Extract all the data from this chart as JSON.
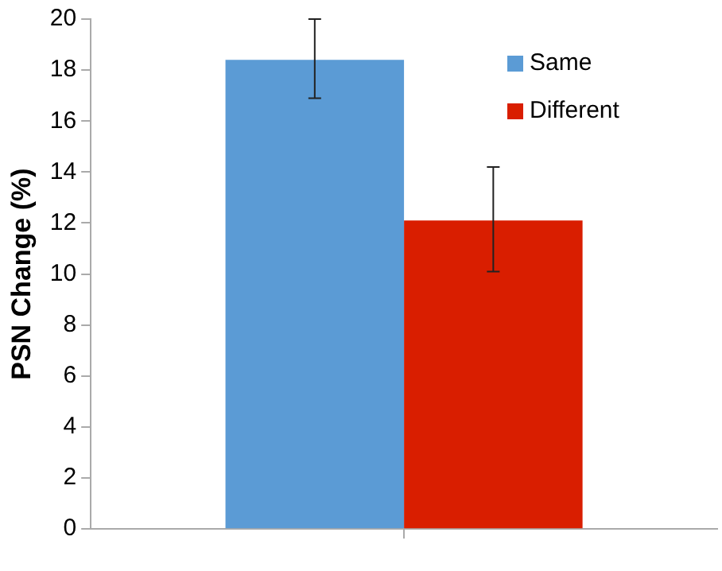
{
  "chart_data": {
    "type": "bar",
    "ylabel": "PSN Change (%)",
    "categories": [
      null
    ],
    "series": [
      {
        "name": "Same",
        "color": "#5b9bd5",
        "values": [
          18.4
        ],
        "errors": [
          [
            16.9,
            20.0
          ]
        ]
      },
      {
        "name": "Different",
        "color": "#d91e00",
        "values": [
          12.1
        ],
        "errors": [
          [
            10.1,
            14.2
          ]
        ]
      }
    ],
    "ylim": [
      0,
      20
    ],
    "yticks": [
      0,
      2,
      4,
      6,
      8,
      10,
      12,
      14,
      16,
      18,
      20
    ],
    "legend": "top right"
  }
}
